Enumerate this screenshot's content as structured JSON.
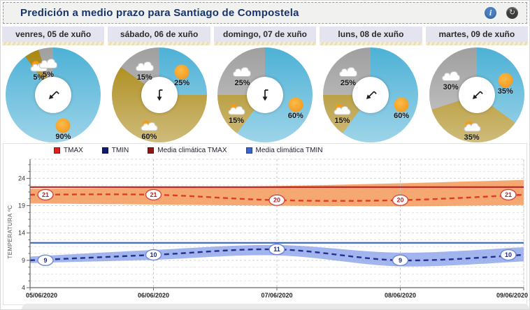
{
  "header": {
    "title": "Predición a medio prazo para Santiago de Compostela"
  },
  "pie_colors": {
    "sun": "#4db1d6",
    "cloud_sun": "#a8850f",
    "cloud": "#9f9f9f"
  },
  "days": [
    {
      "label": "venres, 05 de xuño",
      "arrow_rotation_deg": 45,
      "segments": [
        {
          "type": "sun",
          "percent": 90,
          "label": "90%"
        },
        {
          "type": "cloud_sun",
          "percent": 5,
          "label": "5%"
        },
        {
          "type": "cloud",
          "percent": 5,
          "label": "5%"
        }
      ]
    },
    {
      "label": "sábado, 06 de xuño",
      "arrow_rotation_deg": 0,
      "segments": [
        {
          "type": "sun",
          "percent": 25,
          "label": "25%"
        },
        {
          "type": "cloud_sun",
          "percent": 60,
          "label": "60%"
        },
        {
          "type": "cloud",
          "percent": 15,
          "label": "15%"
        }
      ]
    },
    {
      "label": "domingo, 07 de xuño",
      "arrow_rotation_deg": 0,
      "segments": [
        {
          "type": "sun",
          "percent": 60,
          "label": "60%"
        },
        {
          "type": "cloud_sun",
          "percent": 15,
          "label": "15%"
        },
        {
          "type": "cloud",
          "percent": 25,
          "label": "25%"
        }
      ]
    },
    {
      "label": "luns, 08 de xuño",
      "arrow_rotation_deg": 45,
      "segments": [
        {
          "type": "sun",
          "percent": 60,
          "label": "60%"
        },
        {
          "type": "cloud_sun",
          "percent": 15,
          "label": "15%"
        },
        {
          "type": "cloud",
          "percent": 25,
          "label": "25%"
        }
      ]
    },
    {
      "label": "martes, 09 de xuño",
      "arrow_rotation_deg": 45,
      "segments": [
        {
          "type": "sun",
          "percent": 35,
          "label": "35%"
        },
        {
          "type": "cloud_sun",
          "percent": 35,
          "label": "35%"
        },
        {
          "type": "cloud",
          "percent": 30,
          "label": "30%"
        }
      ]
    }
  ],
  "legend": {
    "items": [
      {
        "label": "TMAX",
        "color": "#e01f1f"
      },
      {
        "label": "TMIN",
        "color": "#141a6e"
      },
      {
        "label": "Media climática TMAX",
        "color": "#8e1717"
      },
      {
        "label": "Media climática TMIN",
        "color": "#3a66cc"
      }
    ]
  },
  "chart_data": {
    "type": "line",
    "x": [
      "05/06/2020",
      "06/06/2020",
      "07/06/2020",
      "08/06/2020",
      "09/06/2020"
    ],
    "ylabel": "TEMPERATURA ºC",
    "ylim": [
      4,
      27.5
    ],
    "yticks": [
      4,
      9,
      14,
      19,
      24
    ],
    "grid": true,
    "legend_position": "top",
    "series": [
      {
        "name": "TMAX",
        "values": [
          21,
          21,
          20,
          20,
          21
        ],
        "color": "#e3382c",
        "dash": true,
        "labels": true,
        "marker_stroke": "#d2493f",
        "marker_text": "#c32222",
        "band": {
          "upper": [
            22.1,
            22.3,
            22.6,
            23.1,
            23.7
          ],
          "lower": [
            19.4,
            19.2,
            19.0,
            18.9,
            19.1
          ],
          "color": "rgba(243,146,77,0.8)"
        }
      },
      {
        "name": "TMIN",
        "values": [
          9,
          10,
          11,
          9,
          10
        ],
        "color": "#23308f",
        "dash": true,
        "labels": true,
        "marker_stroke": "#6c86d4",
        "marker_text": "#1b2a80",
        "band": {
          "upper": [
            9.7,
            10.9,
            11.8,
            10.4,
            11.4
          ],
          "lower": [
            8.5,
            9.1,
            9.9,
            7.9,
            8.8
          ],
          "color": "rgba(122,150,232,0.7)"
        }
      },
      {
        "name": "Media climática TMAX",
        "values": [
          22.4,
          22.4,
          22.4,
          22.4,
          22.4
        ],
        "color": "#c42424",
        "dash": false
      },
      {
        "name": "Media climática TMIN",
        "values": [
          12.2,
          12.2,
          12.2,
          12.2,
          12.2
        ],
        "color": "#3a66cc",
        "dash": false
      }
    ]
  }
}
